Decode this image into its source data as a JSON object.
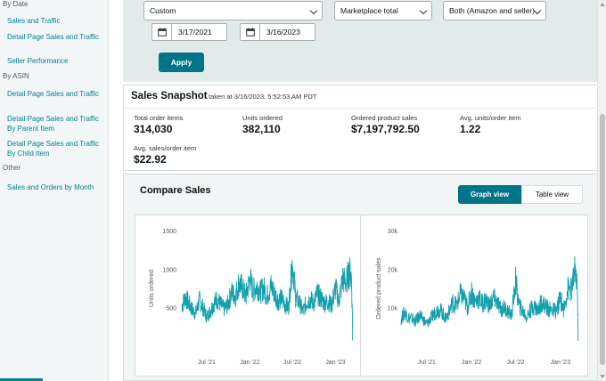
{
  "sidebar": {
    "groups": [
      {
        "heading": "By Date",
        "links": [
          "Sales and Traffic",
          "Detail Page Sales and Traffic",
          "Seller Performance"
        ]
      },
      {
        "heading": "By ASIN",
        "links": [
          "Detail Page Sales and Traffic",
          "Detail Page Sales and Traffic By Parent Item",
          "Detail Page Sales and Traffic By Child Item"
        ]
      },
      {
        "heading": "Other",
        "links": [
          "Sales and Orders by Month"
        ]
      }
    ]
  },
  "filters": {
    "date_range": "Custom",
    "sales_breakdown": "Marketplace total",
    "fulfillment": "Both (Amazon and seller)",
    "start_date": "3/17/2021",
    "end_date": "3/16/2023",
    "apply_label": "Apply"
  },
  "snapshot": {
    "title": "Sales Snapshot",
    "taken": "taken at 3/16/2023, 5:52:53 AM PDT",
    "metrics": [
      {
        "label": "Total order items",
        "value": "314,030"
      },
      {
        "label": "Units ordered",
        "value": "382,110"
      },
      {
        "label": "Ordered product sales",
        "value": "$7,197,792.50"
      },
      {
        "label": "Avg. units/order item",
        "value": "1.22"
      },
      {
        "label": "Avg. sales/order item",
        "value": "$22.92"
      }
    ]
  },
  "compare": {
    "title": "Compare Sales",
    "graph_view_label": "Graph view",
    "table_view_label": "Table view"
  },
  "colors": {
    "accent": "#00758a",
    "series": "#139fae",
    "link": "#00838f"
  },
  "chart_data": [
    {
      "type": "line",
      "title": "",
      "ylabel": "Units ordered",
      "xlabel": "",
      "ylim": [
        0,
        1500
      ],
      "yticks": [
        0,
        500,
        1000,
        1500
      ],
      "ytick_labels": [
        "",
        "500",
        "1000",
        "1500"
      ],
      "xtick_labels": [
        "Jul '21",
        "Jan '22",
        "Jul '22",
        "Jan '23"
      ],
      "series": [
        {
          "x": [
            "2021-03-17",
            "2021-04-01",
            "2021-04-15",
            "2021-05-01",
            "2021-05-15",
            "2021-06-01",
            "2021-06-15",
            "2021-07-01",
            "2021-07-15",
            "2021-08-01",
            "2021-08-15",
            "2021-09-01",
            "2021-09-15",
            "2021-10-01",
            "2021-10-15",
            "2021-11-01",
            "2021-11-15",
            "2021-12-01",
            "2021-12-15",
            "2022-01-01",
            "2022-01-15",
            "2022-02-01",
            "2022-02-15",
            "2022-03-01",
            "2022-03-15",
            "2022-04-01",
            "2022-04-15",
            "2022-05-01",
            "2022-05-15",
            "2022-06-01",
            "2022-06-15",
            "2022-07-01",
            "2022-07-15",
            "2022-08-01",
            "2022-08-15",
            "2022-09-01",
            "2022-09-15",
            "2022-10-01",
            "2022-10-15",
            "2022-11-01",
            "2022-11-15",
            "2022-12-01",
            "2022-12-15",
            "2023-01-01",
            "2023-01-15",
            "2023-02-01",
            "2023-02-15",
            "2023-03-01",
            "2023-03-10",
            "2023-03-16"
          ],
          "values": [
            520,
            640,
            560,
            470,
            430,
            600,
            500,
            380,
            450,
            560,
            610,
            530,
            480,
            560,
            700,
            650,
            820,
            750,
            640,
            880,
            720,
            780,
            700,
            760,
            650,
            780,
            690,
            590,
            620,
            540,
            500,
            1100,
            640,
            560,
            450,
            580,
            610,
            560,
            680,
            620,
            560,
            580,
            530,
            760,
            580,
            880,
            820,
            970,
            900,
            80
          ]
        }
      ]
    },
    {
      "type": "line",
      "title": "",
      "ylabel": "Ordered product sales",
      "xlabel": "",
      "ylim": [
        0,
        30000
      ],
      "yticks": [
        0,
        10000,
        20000,
        30000
      ],
      "ytick_labels": [
        "",
        "10k",
        "20k",
        "30k"
      ],
      "xtick_labels": [
        "Jul '21",
        "Jan '22",
        "Jul '22",
        "Jan '23"
      ],
      "series": [
        {
          "x": [
            "2021-03-17",
            "2021-04-01",
            "2021-04-15",
            "2021-05-01",
            "2021-05-15",
            "2021-06-01",
            "2021-06-15",
            "2021-07-01",
            "2021-07-15",
            "2021-08-01",
            "2021-08-15",
            "2021-09-01",
            "2021-09-15",
            "2021-10-01",
            "2021-10-15",
            "2021-11-01",
            "2021-11-15",
            "2021-12-01",
            "2021-12-15",
            "2022-01-01",
            "2022-01-15",
            "2022-02-01",
            "2022-02-15",
            "2022-03-01",
            "2022-03-15",
            "2022-04-01",
            "2022-04-15",
            "2022-05-01",
            "2022-05-15",
            "2022-06-01",
            "2022-06-15",
            "2022-07-01",
            "2022-07-15",
            "2022-08-01",
            "2022-08-15",
            "2022-09-01",
            "2022-09-15",
            "2022-10-01",
            "2022-10-15",
            "2022-11-01",
            "2022-11-15",
            "2022-12-01",
            "2022-12-15",
            "2023-01-01",
            "2023-01-15",
            "2023-02-01",
            "2023-02-15",
            "2023-03-01",
            "2023-03-10",
            "2023-03-16"
          ],
          "values": [
            7000,
            8800,
            7500,
            7200,
            6400,
            8000,
            7000,
            5800,
            7000,
            8500,
            9500,
            9000,
            7200,
            9000,
            11500,
            10500,
            13500,
            12500,
            10000,
            14000,
            11500,
            12500,
            11000,
            12000,
            10500,
            12500,
            11500,
            9500,
            10000,
            9000,
            8000,
            17000,
            10500,
            9000,
            7500,
            9500,
            10500,
            9200,
            11500,
            10500,
            9500,
            9500,
            9000,
            12500,
            9500,
            15000,
            14500,
            19000,
            18000,
            1500
          ]
        }
      ]
    }
  ]
}
